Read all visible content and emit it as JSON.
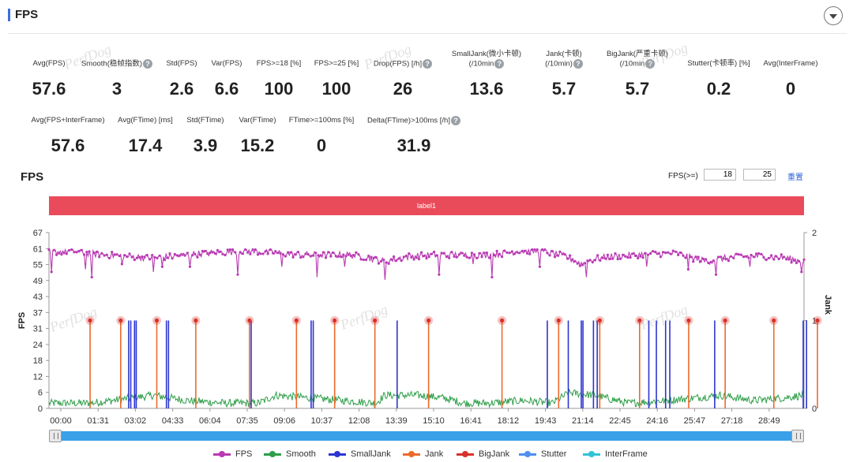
{
  "header": {
    "title": "FPS"
  },
  "stats_row1": [
    {
      "label": "Avg(FPS)",
      "value": "57.6",
      "help": false
    },
    {
      "label": "Smooth(稳帧指数)",
      "value": "3",
      "help": true
    },
    {
      "label": "Std(FPS)",
      "value": "2.6",
      "help": false
    },
    {
      "label": "Var(FPS)",
      "value": "6.6",
      "help": false
    },
    {
      "label": "FPS>=18 [%]",
      "value": "100",
      "help": false
    },
    {
      "label": "FPS>=25 [%]",
      "value": "100",
      "help": false
    },
    {
      "label": "Drop(FPS) [/h]",
      "value": "26",
      "help": true
    },
    {
      "label": "SmallJank(微小卡顿)",
      "label2": "(/10min",
      "value": "13.6",
      "help": true
    },
    {
      "label": "Jank(卡顿)",
      "label2": "(/10min)",
      "value": "5.7",
      "help": true
    },
    {
      "label": "BigJank(严重卡顿)",
      "label2": "(/10min",
      "value": "5.7",
      "help": true
    },
    {
      "label": "Stutter(卡顿率) [%]",
      "value": "0.2",
      "help": false
    },
    {
      "label": "Avg(InterFrame)",
      "value": "0",
      "help": false
    }
  ],
  "stats_row2": [
    {
      "label": "Avg(FPS+InterFrame)",
      "value": "57.6",
      "help": false
    },
    {
      "label": "Avg(FTime) [ms]",
      "value": "17.4",
      "help": false
    },
    {
      "label": "Std(FTime)",
      "value": "3.9",
      "help": false
    },
    {
      "label": "Var(FTime)",
      "value": "15.2",
      "help": false
    },
    {
      "label": "FTime>=100ms [%]",
      "value": "0",
      "help": false
    },
    {
      "label": "Delta(FTime)>100ms [/h]",
      "value": "31.9",
      "help": true
    }
  ],
  "fps_section": {
    "title": "FPS",
    "threshold_label": "FPS(>=)",
    "threshold_1": "18",
    "threshold_2": "25",
    "reset_label": "重置",
    "label_bar": "label1"
  },
  "watermark": "PerfDog",
  "chart_data": {
    "type": "line",
    "y_label_left": "FPS",
    "y_label_right": "Jank",
    "y_ticks_left": [
      "67",
      "61",
      "55",
      "49",
      "43",
      "37",
      "31",
      "24",
      "18",
      "12",
      "6",
      "0"
    ],
    "y_ticks_right": [
      "2",
      "1",
      "0"
    ],
    "y_left_range": [
      0,
      67
    ],
    "y_right_range": [
      0,
      2
    ],
    "x_ticks": [
      "00:00",
      "01:31",
      "03:02",
      "04:33",
      "06:04",
      "07:35",
      "09:06",
      "10:37",
      "12:08",
      "13:39",
      "15:10",
      "16:41",
      "18:12",
      "19:43",
      "21:14",
      "22:45",
      "24:16",
      "25:47",
      "27:18",
      "28:49"
    ],
    "x_range_seconds": [
      0,
      1800
    ],
    "fps_profile": [
      {
        "t": 0,
        "v": 59.5
      },
      {
        "t": 60,
        "v": 60
      },
      {
        "t": 100,
        "v": 59
      },
      {
        "t": 140,
        "v": 58.5
      },
      {
        "t": 180,
        "v": 58
      },
      {
        "t": 230,
        "v": 57.5
      },
      {
        "t": 260,
        "v": 57.5
      },
      {
        "t": 300,
        "v": 58
      },
      {
        "t": 360,
        "v": 59
      },
      {
        "t": 420,
        "v": 59.5
      },
      {
        "t": 470,
        "v": 60
      },
      {
        "t": 520,
        "v": 59.5
      },
      {
        "t": 560,
        "v": 59
      },
      {
        "t": 610,
        "v": 58.5
      },
      {
        "t": 660,
        "v": 58.5
      },
      {
        "t": 720,
        "v": 58.5
      },
      {
        "t": 760,
        "v": 57.5
      },
      {
        "t": 800,
        "v": 56
      },
      {
        "t": 860,
        "v": 58
      },
      {
        "t": 920,
        "v": 58.5
      },
      {
        "t": 980,
        "v": 58.5
      },
      {
        "t": 1040,
        "v": 58.5
      },
      {
        "t": 1080,
        "v": 59
      },
      {
        "t": 1120,
        "v": 60
      },
      {
        "t": 1170,
        "v": 60
      },
      {
        "t": 1230,
        "v": 58
      },
      {
        "t": 1270,
        "v": 55
      },
      {
        "t": 1300,
        "v": 57
      },
      {
        "t": 1350,
        "v": 58
      },
      {
        "t": 1400,
        "v": 58.5
      },
      {
        "t": 1450,
        "v": 59
      },
      {
        "t": 1500,
        "v": 59
      },
      {
        "t": 1540,
        "v": 57
      },
      {
        "t": 1570,
        "v": 56
      },
      {
        "t": 1600,
        "v": 57
      },
      {
        "t": 1650,
        "v": 58
      },
      {
        "t": 1700,
        "v": 58
      },
      {
        "t": 1750,
        "v": 57.5
      },
      {
        "t": 1800,
        "v": 56
      }
    ],
    "fps_dips": [
      {
        "t": 5,
        "v": 52
      },
      {
        "t": 88,
        "v": 53
      },
      {
        "t": 102,
        "v": 50
      },
      {
        "t": 175,
        "v": 55
      },
      {
        "t": 250,
        "v": 52
      },
      {
        "t": 270,
        "v": 54
      },
      {
        "t": 335,
        "v": 54
      },
      {
        "t": 450,
        "v": 51
      },
      {
        "t": 555,
        "v": 54
      },
      {
        "t": 640,
        "v": 50
      },
      {
        "t": 705,
        "v": 54
      },
      {
        "t": 800,
        "v": 49
      },
      {
        "t": 930,
        "v": 51
      },
      {
        "t": 1010,
        "v": 55
      },
      {
        "t": 1055,
        "v": 50
      },
      {
        "t": 1170,
        "v": 54
      },
      {
        "t": 1280,
        "v": 50
      },
      {
        "t": 1425,
        "v": 54
      },
      {
        "t": 1525,
        "v": 53
      },
      {
        "t": 1590,
        "v": 51
      },
      {
        "t": 1670,
        "v": 54
      },
      {
        "t": 1795,
        "v": 52
      }
    ],
    "smooth_profile": [
      {
        "t": 0,
        "v": 2
      },
      {
        "t": 100,
        "v": 2
      },
      {
        "t": 150,
        "v": 3
      },
      {
        "t": 250,
        "v": 5
      },
      {
        "t": 330,
        "v": 3
      },
      {
        "t": 420,
        "v": 2
      },
      {
        "t": 500,
        "v": 2
      },
      {
        "t": 540,
        "v": 5
      },
      {
        "t": 620,
        "v": 4
      },
      {
        "t": 700,
        "v": 3
      },
      {
        "t": 780,
        "v": 2
      },
      {
        "t": 800,
        "v": 5
      },
      {
        "t": 880,
        "v": 5
      },
      {
        "t": 940,
        "v": 4
      },
      {
        "t": 990,
        "v": 2
      },
      {
        "t": 1050,
        "v": 2
      },
      {
        "t": 1130,
        "v": 3
      },
      {
        "t": 1200,
        "v": 2
      },
      {
        "t": 1240,
        "v": 6
      },
      {
        "t": 1300,
        "v": 5
      },
      {
        "t": 1380,
        "v": 2
      },
      {
        "t": 1470,
        "v": 3
      },
      {
        "t": 1540,
        "v": 4
      },
      {
        "t": 1600,
        "v": 5
      },
      {
        "t": 1680,
        "v": 3
      },
      {
        "t": 1750,
        "v": 4
      },
      {
        "t": 1800,
        "v": 5
      }
    ],
    "big_jank_times": [
      98,
      171,
      257,
      350,
      478,
      590,
      681,
      777,
      905,
      1080,
      1215,
      1313,
      1408,
      1525,
      1612,
      1728,
      1832
    ],
    "small_jank_times": [
      190,
      195,
      204,
      208,
      280,
      285,
      482,
      625,
      630,
      830,
      1188,
      1238,
      1269,
      1273,
      1298,
      1307,
      1430,
      1448,
      1470,
      1480,
      1587,
      1798,
      1806
    ],
    "series": [
      {
        "name": "FPS",
        "color": "#b93bb3"
      },
      {
        "name": "Smooth",
        "color": "#2e9e48"
      },
      {
        "name": "SmallJank",
        "color": "#2d35d0"
      },
      {
        "name": "Jank",
        "color": "#ed6a2c"
      },
      {
        "name": "BigJank",
        "color": "#d8322b"
      },
      {
        "name": "Stutter",
        "color": "#4f8ef2"
      },
      {
        "name": "InterFrame",
        "color": "#30c3d8"
      }
    ]
  }
}
